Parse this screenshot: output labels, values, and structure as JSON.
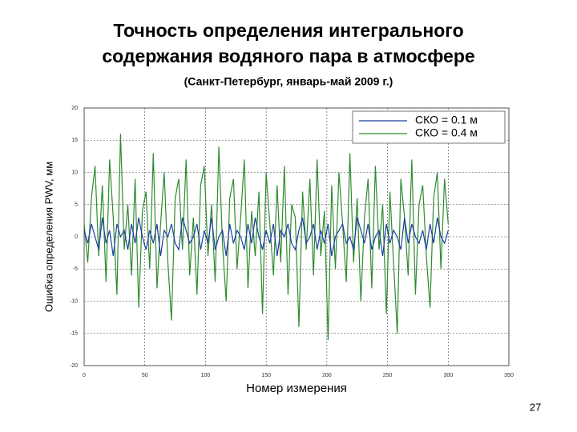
{
  "chart_data": {
    "type": "line",
    "title": [
      "Точность определения интегрального",
      "содержания водяного пара в атмосфере"
    ],
    "subtitle": "(Санкт-Петербург, январь-май 2009 г.)",
    "y_label": "Ошибка определения PWV, мм",
    "x_label": "Номер измерения",
    "page_number": "27",
    "xlim": [
      0,
      350
    ],
    "xticks": [
      0,
      50,
      100,
      150,
      200,
      250,
      300,
      350
    ],
    "ylim": [
      -20,
      20
    ],
    "yticks": [
      -20,
      -15,
      -10,
      -5,
      0,
      5,
      10,
      15,
      20
    ],
    "grid": true,
    "legend": "upper right",
    "x": [
      0,
      3,
      6,
      9,
      12,
      15,
      18,
      21,
      24,
      27,
      30,
      33,
      36,
      39,
      42,
      45,
      48,
      51,
      54,
      57,
      60,
      63,
      66,
      69,
      72,
      75,
      78,
      81,
      84,
      87,
      90,
      93,
      96,
      99,
      102,
      105,
      108,
      111,
      114,
      117,
      120,
      123,
      126,
      129,
      132,
      135,
      138,
      141,
      144,
      147,
      150,
      153,
      156,
      159,
      162,
      165,
      168,
      171,
      174,
      177,
      180,
      183,
      186,
      189,
      192,
      195,
      198,
      201,
      204,
      207,
      210,
      213,
      216,
      219,
      222,
      225,
      228,
      231,
      234,
      237,
      240,
      243,
      246,
      249,
      252,
      255,
      258,
      261,
      264,
      267,
      270,
      273,
      276,
      279,
      282,
      285,
      288,
      291,
      294,
      297,
      300
    ],
    "series": [
      {
        "name": "СКО = 0.1 м",
        "color": "#1f3fa0",
        "values": [
          1,
          -1,
          2,
          0,
          -2,
          3,
          -1,
          1,
          -3,
          2,
          0,
          1,
          -2,
          2,
          -1,
          3,
          0,
          -2,
          1,
          -1,
          2,
          -3,
          1,
          0,
          2,
          -1,
          -2,
          3,
          1,
          -1,
          0,
          2,
          -2,
          1,
          -1,
          3,
          -2,
          0,
          1,
          -3,
          2,
          -1,
          1,
          0,
          -2,
          2,
          -1,
          3,
          0,
          -2,
          1,
          -1,
          2,
          -3,
          1,
          0,
          2,
          -1,
          -2,
          1,
          3,
          -1,
          0,
          2,
          -2,
          1,
          -1,
          2,
          -3,
          0,
          1,
          2,
          -1,
          0,
          -2,
          3,
          1,
          -1,
          2,
          -2,
          0,
          1,
          -3,
          2,
          -1,
          1,
          0,
          -2,
          3,
          -1,
          2,
          0,
          -1,
          1,
          -2,
          2,
          -1,
          3,
          0,
          -1,
          1
        ]
      },
      {
        "name": "СКО = 0.4 м",
        "color": "#2e8b2e",
        "values": [
          2,
          -4,
          6,
          11,
          -3,
          8,
          -7,
          12,
          3,
          -9,
          16,
          -2,
          5,
          -6,
          9,
          -11,
          4,
          7,
          -5,
          13,
          -8,
          2,
          10,
          -4,
          -13,
          6,
          9,
          -2,
          12,
          -6,
          3,
          -9,
          8,
          11,
          -3,
          5,
          -7,
          14,
          -1,
          -10,
          6,
          9,
          -5,
          3,
          12,
          -8,
          4,
          -3,
          7,
          -12,
          10,
          2,
          -6,
          8,
          -4,
          11,
          -9,
          5,
          3,
          -14,
          7,
          -2,
          9,
          -6,
          12,
          -3,
          4,
          -16,
          8,
          -5,
          10,
          2,
          -7,
          13,
          -4,
          6,
          -10,
          3,
          9,
          -8,
          11,
          -2,
          5,
          -12,
          7,
          -4,
          -15,
          9,
          3,
          -6,
          12,
          -9,
          5,
          8,
          -3,
          -11,
          6,
          10,
          -5,
          9,
          2
        ]
      }
    ]
  }
}
